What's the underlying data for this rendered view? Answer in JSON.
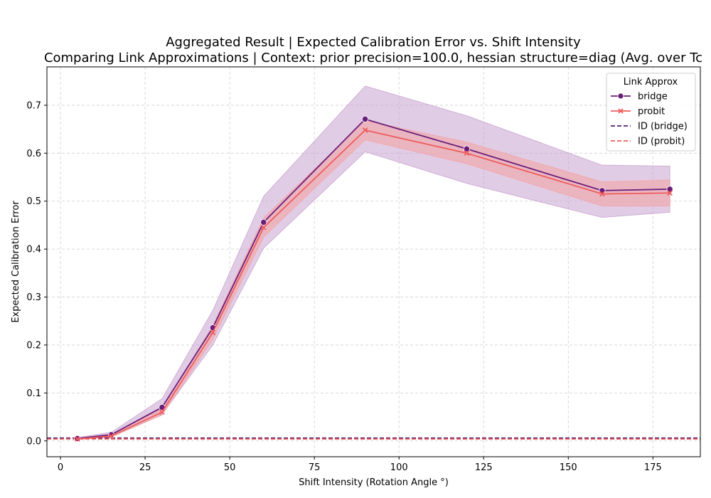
{
  "chart_data": {
    "type": "line",
    "title": "Aggregated Result | Expected Calibration Error vs. Shift Intensity",
    "subtitle": "Comparing Link Approximations | Context: prior precision=100.0, hessian structure=diag (Avg. over Tc",
    "xlabel": "Shift Intensity (Rotation Angle °)",
    "ylabel": "Expected Calibration Error",
    "xlim": [
      -4,
      189
    ],
    "ylim": [
      -0.033,
      0.78
    ],
    "xticks": [
      0,
      25,
      50,
      75,
      100,
      125,
      150,
      175
    ],
    "yticks": [
      0.0,
      0.1,
      0.2,
      0.3,
      0.4,
      0.5,
      0.6,
      0.7
    ],
    "xtick_labels": [
      "0",
      "25",
      "50",
      "75",
      "100",
      "125",
      "150",
      "175"
    ],
    "ytick_labels": [
      "0.0",
      "0.1",
      "0.2",
      "0.3",
      "0.4",
      "0.5",
      "0.6",
      "0.7"
    ],
    "grid": true,
    "legend_title": "Link Approx",
    "legend_position": "top-right",
    "x": [
      5,
      15,
      30,
      45,
      60,
      90,
      120,
      160,
      180
    ],
    "series": [
      {
        "name": "bridge",
        "color": "#6b1d7a",
        "marker": "circle",
        "values": [
          0.005,
          0.013,
          0.07,
          0.236,
          0.456,
          0.671,
          0.609,
          0.522,
          0.525
        ],
        "band_low": [
          0.003,
          0.009,
          0.055,
          0.2,
          0.402,
          0.603,
          0.537,
          0.466,
          0.477
        ],
        "band_high": [
          0.007,
          0.018,
          0.088,
          0.272,
          0.51,
          0.74,
          0.678,
          0.575,
          0.573
        ],
        "band_color": "#c8a3cf"
      },
      {
        "name": "probit",
        "color": "#ee5c5c",
        "marker": "x",
        "values": [
          0.004,
          0.01,
          0.06,
          0.226,
          0.445,
          0.648,
          0.6,
          0.515,
          0.517
        ],
        "band_low": [
          0.003,
          0.008,
          0.054,
          0.212,
          0.425,
          0.628,
          0.578,
          0.49,
          0.49
        ],
        "band_high": [
          0.006,
          0.013,
          0.067,
          0.24,
          0.465,
          0.668,
          0.623,
          0.54,
          0.544
        ],
        "band_color": "#f4a3a3"
      },
      {
        "name": "ID (bridge)",
        "color": "#5a1a6e",
        "dashed": true,
        "hline": 0.006
      },
      {
        "name": "ID (probit)",
        "color": "#ee5c5c",
        "dashed": true,
        "hline": 0.004
      }
    ]
  }
}
